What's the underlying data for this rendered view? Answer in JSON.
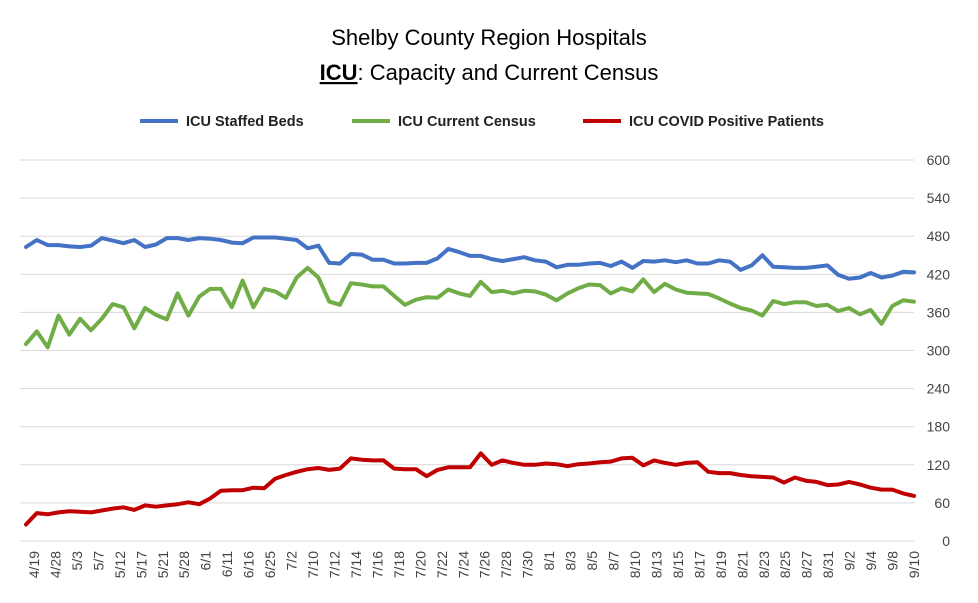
{
  "chart_data": {
    "type": "line",
    "title_line1": "Shelby County Region Hospitals",
    "title_line2_bold": "ICU",
    "title_line2_rest": ": Capacity and Current Census",
    "ylim": [
      0,
      600
    ],
    "yticks": [
      0,
      60,
      120,
      180,
      240,
      300,
      360,
      420,
      480,
      540,
      600
    ],
    "x_tick_labels": [
      "4/19",
      "4/28",
      "5/3",
      "5/7",
      "5/12",
      "5/17",
      "5/21",
      "5/28",
      "6/1",
      "6/11",
      "6/16",
      "6/25",
      "7/2",
      "7/10",
      "7/12",
      "7/14",
      "7/16",
      "7/18",
      "7/20",
      "7/22",
      "7/24",
      "7/26",
      "7/28",
      "7/30",
      "8/1",
      "8/3",
      "8/5",
      "8/7",
      "8/10",
      "8/13",
      "8/15",
      "8/17",
      "8/19",
      "8/21",
      "8/23",
      "8/25",
      "8/27",
      "8/31",
      "9/2",
      "9/4",
      "9/8",
      "9/10"
    ],
    "legend_position": "top",
    "series": [
      {
        "name": "ICU Staffed Beds",
        "color": "#4472C4",
        "values": [
          463,
          474,
          466,
          466,
          464,
          463,
          465,
          477,
          473,
          469,
          474,
          463,
          467,
          477,
          477,
          474,
          477,
          476,
          474,
          470,
          469,
          478,
          478,
          478,
          476,
          474,
          461,
          465,
          438,
          437,
          452,
          451,
          443,
          443,
          437,
          437,
          438,
          438,
          445,
          460,
          455,
          449,
          449,
          444,
          441,
          444,
          447,
          442,
          440,
          431,
          435,
          435,
          437,
          438,
          433,
          440,
          430,
          441,
          440,
          442,
          439,
          442,
          437,
          437,
          442,
          440,
          427,
          434,
          450,
          432,
          431,
          430,
          430,
          432,
          434,
          419,
          413,
          415,
          422,
          415,
          418,
          424,
          423
        ]
      },
      {
        "name": "ICU Current Census",
        "color": "#70AD47",
        "values": [
          310,
          330,
          305,
          355,
          325,
          350,
          332,
          350,
          373,
          368,
          335,
          367,
          356,
          349,
          390,
          355,
          385,
          397,
          397,
          368,
          410,
          368,
          397,
          393,
          383,
          415,
          430,
          415,
          377,
          372,
          406,
          404,
          401,
          401,
          386,
          372,
          380,
          384,
          383,
          396,
          390,
          386,
          408,
          392,
          394,
          390,
          394,
          393,
          388,
          379,
          390,
          398,
          404,
          403,
          390,
          398,
          393,
          412,
          392,
          405,
          396,
          391,
          390,
          389,
          382,
          374,
          367,
          363,
          355,
          378,
          373,
          376,
          376,
          370,
          372,
          362,
          367,
          357,
          364,
          342,
          370,
          379,
          377
        ]
      },
      {
        "name": "ICU COVID Positive Patients",
        "color": "#C00000",
        "values": [
          26,
          44,
          42,
          45,
          47,
          46,
          45,
          48,
          51,
          53,
          49,
          56,
          54,
          56,
          58,
          61,
          58,
          67,
          79,
          80,
          80,
          84,
          83,
          98,
          104,
          109,
          113,
          115,
          112,
          114,
          130,
          128,
          127,
          127,
          114,
          113,
          113,
          102,
          112,
          116,
          116,
          116,
          138,
          120,
          127,
          123,
          120,
          120,
          122,
          121,
          118,
          121,
          122,
          124,
          125,
          130,
          131,
          119,
          127,
          123,
          120,
          123,
          124,
          109,
          107,
          107,
          104,
          102,
          101,
          100,
          92,
          100,
          95,
          93,
          88,
          89,
          93,
          89,
          84,
          81,
          81,
          75,
          71
        ]
      }
    ]
  }
}
